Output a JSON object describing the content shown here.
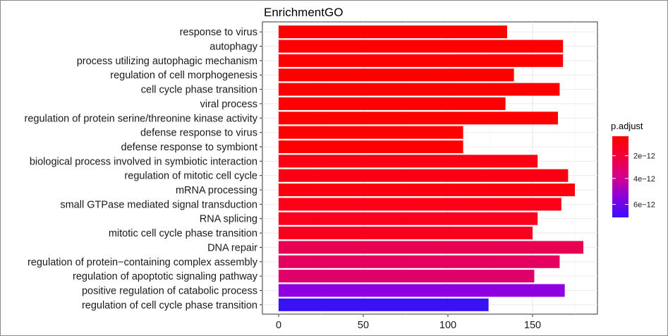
{
  "chart_data": {
    "type": "bar",
    "orientation": "horizontal",
    "title": "EnrichmentGO",
    "xlabel": "",
    "ylabel": "",
    "xlim": [
      0,
      190
    ],
    "xticks": [
      0,
      50,
      100,
      150
    ],
    "grid": true,
    "legend_position": "right",
    "categories": [
      "response to virus",
      "autophagy",
      "process utilizing autophagic mechanism",
      "regulation of cell morphogenesis",
      "cell cycle phase transition",
      "viral process",
      "regulation of protein serine/threonine kinase activity",
      "defense response to virus",
      "defense response to symbiont",
      "biological process involved in symbiotic interaction",
      "regulation of mitotic cell cycle",
      "mRNA processing",
      "small GTPase mediated signal transduction",
      "RNA splicing",
      "mitotic cell cycle phase transition",
      "DNA repair",
      "regulation of protein−containing complex assembly",
      "regulation of apoptotic signaling pathway",
      "positive regulation of catabolic process",
      "regulation of cell cycle phase transition"
    ],
    "values": [
      135,
      168,
      168,
      139,
      166,
      134,
      165,
      109,
      109,
      153,
      171,
      175,
      167,
      153,
      150,
      180,
      166,
      151,
      169,
      124
    ],
    "colors": [
      "#ff0000",
      "#ff0000",
      "#ff0000",
      "#ff0000",
      "#ff0000",
      "#ff0000",
      "#ff0000",
      "#ff0000",
      "#ff0000",
      "#fb0014",
      "#fb0014",
      "#fc0010",
      "#fb0016",
      "#fa001a",
      "#f8001f",
      "#e80052",
      "#e4005e",
      "#e0006a",
      "#8f00e0",
      "#3a10f5"
    ],
    "color_legend": {
      "title": "p.adjust",
      "tick_labels": [
        "2e−12",
        "4e−12",
        "6e−12"
      ],
      "tick_positions": [
        0.24,
        0.52,
        0.84
      ],
      "gradient": [
        "#ff0000",
        "#f0003a",
        "#d6008a",
        "#8800dd",
        "#3a10ff"
      ]
    }
  }
}
